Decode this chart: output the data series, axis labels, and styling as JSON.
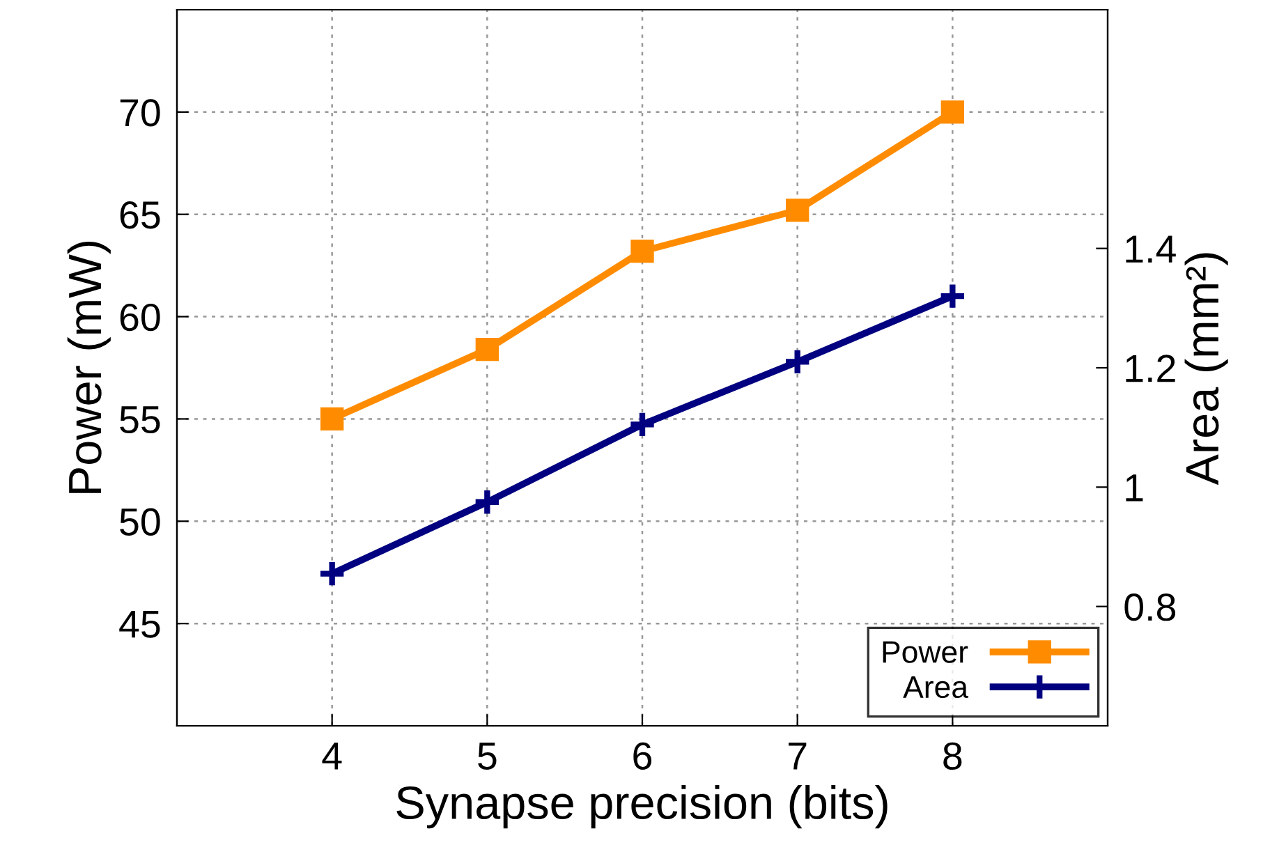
{
  "chart_data": {
    "type": "line",
    "xlabel": "Synapse precision (bits)",
    "ylabel": "Power (mW)",
    "y2label": "Area (mm²)",
    "x": [
      4,
      5,
      6,
      7,
      8
    ],
    "series": [
      {
        "name": "Power",
        "color": "#ff8c00",
        "marker": "square",
        "values": [
          55.0,
          58.4,
          63.2,
          65.2,
          70.0
        ]
      },
      {
        "name": "Area",
        "color": "#000080",
        "marker": "cross",
        "axis": "y2",
        "values": [
          0.855,
          0.975,
          1.105,
          1.21,
          1.32
        ]
      }
    ],
    "xlim": [
      3,
      9
    ],
    "xticks": [
      4,
      5,
      6,
      7,
      8
    ],
    "ylim": [
      40,
      75
    ],
    "yticks": [
      45,
      50,
      55,
      60,
      65,
      70
    ],
    "y2lim": [
      0.6,
      1.8
    ],
    "y2ticks": [
      0.8,
      1,
      1.2,
      1.4
    ],
    "grid": true,
    "legend": "bottom right",
    "line_style": "solid"
  }
}
